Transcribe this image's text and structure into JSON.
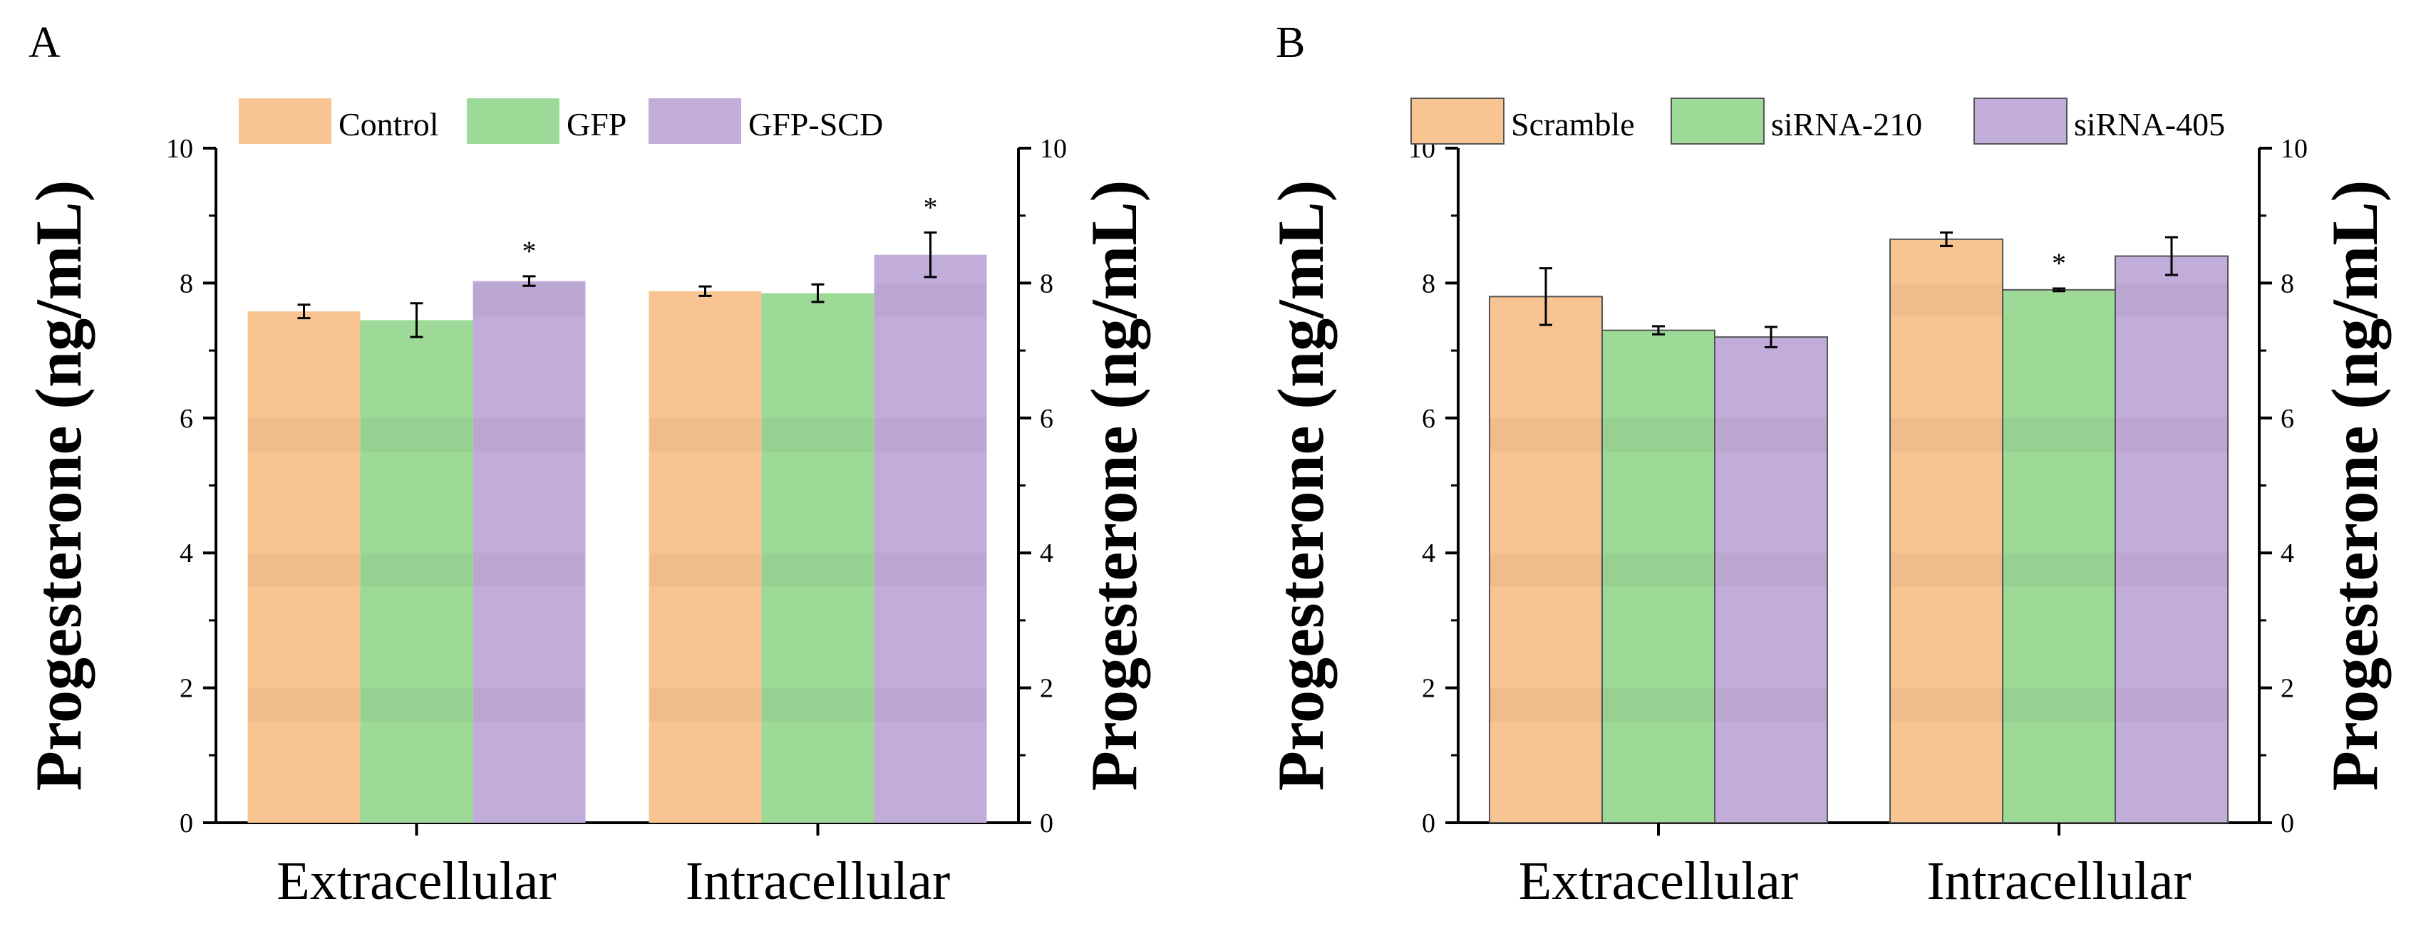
{
  "chart_data": [
    {
      "panel_label": "A",
      "type": "bar",
      "categories": [
        "Extracellular",
        "Intracellular"
      ],
      "ylabel_left": "Progesterone (ng/mL)",
      "ylabel_right": "Progesterone (ng/mL)",
      "ylim": [
        0,
        10
      ],
      "yticks": [
        "0",
        "2",
        "4",
        "6",
        "8",
        "10"
      ],
      "series": [
        {
          "name": "Control",
          "values": [
            7.58,
            7.88
          ],
          "errors": [
            0.1,
            0.07
          ],
          "color": "#F8C491",
          "stroke": "none"
        },
        {
          "name": "GFP",
          "values": [
            7.45,
            7.85
          ],
          "errors": [
            0.25,
            0.13
          ],
          "color": "#9DD997",
          "stroke": "none"
        },
        {
          "name": "GFP-SCD",
          "values": [
            8.03,
            8.42
          ],
          "errors": [
            0.07,
            0.33
          ],
          "color": "#C2ACD9",
          "stroke": "none"
        }
      ],
      "annotations": [
        {
          "text": "*",
          "series": 2,
          "category": 0
        },
        {
          "text": "*",
          "series": 2,
          "category": 1
        }
      ]
    },
    {
      "panel_label": "B",
      "type": "bar",
      "categories": [
        "Extracellular",
        "Intracellular"
      ],
      "ylabel_left": "Progesterone (ng/mL)",
      "ylabel_right": "Progesterone (ng/mL)",
      "ylim": [
        0,
        10
      ],
      "yticks": [
        "0",
        "2",
        "4",
        "6",
        "8",
        "10"
      ],
      "series": [
        {
          "name": "Scramble",
          "values": [
            7.8,
            8.65
          ],
          "errors": [
            0.42,
            0.1
          ],
          "color": "#F8C491",
          "stroke": "#555555"
        },
        {
          "name": "siRNA-210",
          "values": [
            7.3,
            7.9
          ],
          "errors": [
            0.06,
            0.02
          ],
          "color": "#9DD997",
          "stroke": "#555555"
        },
        {
          "name": "siRNA-405",
          "values": [
            7.2,
            8.4
          ],
          "errors": [
            0.15,
            0.28
          ],
          "color": "#C2ACD9",
          "stroke": "#555555"
        }
      ],
      "annotations": [
        {
          "text": "*",
          "series": 1,
          "category": 1
        }
      ]
    }
  ]
}
